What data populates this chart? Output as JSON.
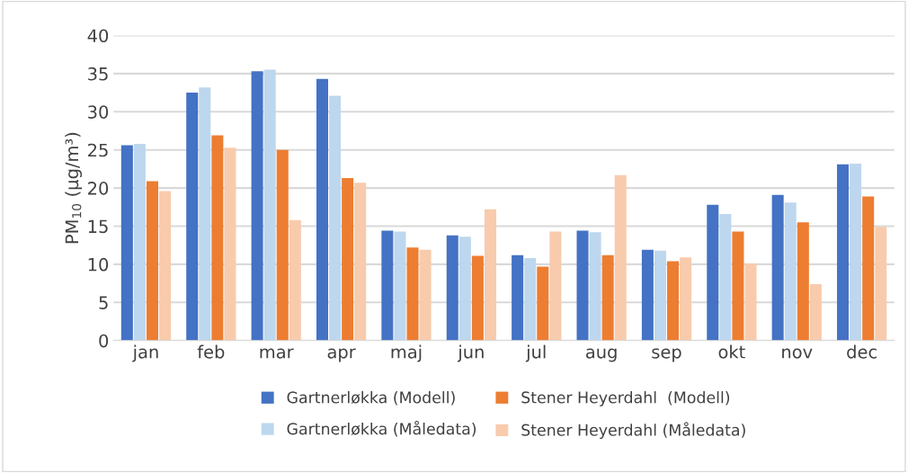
{
  "chart_data": {
    "type": "bar",
    "ylabel": "PM$_{10}$ (µg/m³)",
    "categories": [
      "jan",
      "feb",
      "mar",
      "apr",
      "maj",
      "jun",
      "jul",
      "aug",
      "sep",
      "okt",
      "nov",
      "dec"
    ],
    "series": [
      {
        "name": "Gartnerløkka (Modell)",
        "color": "#4472c4",
        "values": [
          25.6,
          32.5,
          35.3,
          34.3,
          14.4,
          13.8,
          11.2,
          14.4,
          11.9,
          17.8,
          19.1,
          23.1
        ]
      },
      {
        "name": "Gartnerløkka (Måledata)",
        "color": "#bdd7ee",
        "values": [
          25.8,
          33.2,
          35.5,
          32.1,
          14.3,
          13.6,
          10.8,
          14.2,
          11.8,
          16.6,
          18.1,
          23.2
        ]
      },
      {
        "name": "Stener Heyerdahl  (Modell)",
        "color": "#ed7d31",
        "values": [
          20.9,
          26.9,
          25.0,
          21.3,
          12.2,
          11.1,
          9.7,
          11.2,
          10.4,
          14.3,
          15.5,
          18.9
        ]
      },
      {
        "name": "Stener Heyerdahl (Måledata)",
        "color": "#f8cbad",
        "values": [
          19.6,
          25.3,
          15.8,
          20.7,
          11.9,
          17.2,
          14.3,
          21.7,
          10.9,
          10.1,
          7.4,
          14.9
        ]
      }
    ],
    "ylim": [
      0,
      40
    ],
    "yticks": [
      0,
      5,
      10,
      15,
      20,
      25,
      30,
      35,
      40
    ],
    "grid": "y",
    "legend": "bottom"
  }
}
